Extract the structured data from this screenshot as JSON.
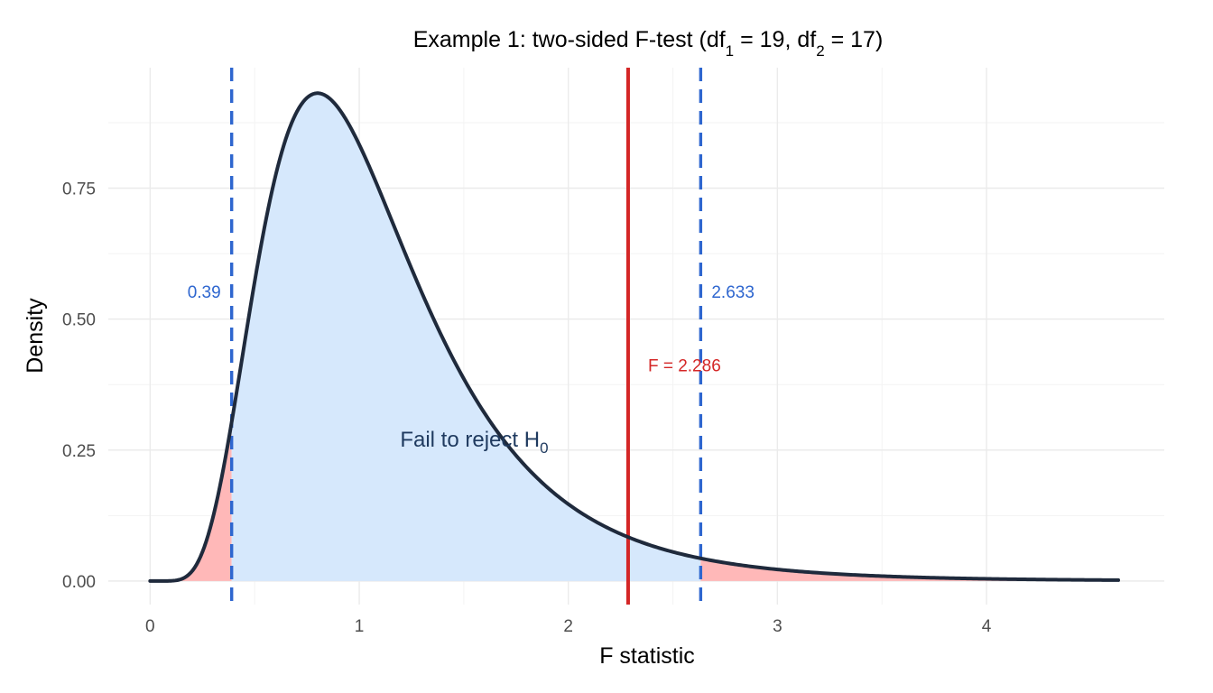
{
  "chart_data": {
    "type": "area",
    "title": {
      "main": "Example 1: two-sided F-test (df",
      "sub1": "1",
      "mid": " = 19, df",
      "sub2": "2",
      "end": " = 17)"
    },
    "xlabel": "F statistic",
    "ylabel": "Density",
    "df1": 19,
    "df2": 17,
    "xlim": [
      -0.2,
      4.85
    ],
    "ylim": [
      -0.045,
      0.98
    ],
    "x_range_curve": [
      0,
      4.63
    ],
    "x_ticks": [
      {
        "value": 0,
        "label": "0"
      },
      {
        "value": 1,
        "label": "1"
      },
      {
        "value": 2,
        "label": "2"
      },
      {
        "value": 3,
        "label": "3"
      },
      {
        "value": 4,
        "label": "4"
      }
    ],
    "y_ticks": [
      {
        "value": 0.0,
        "label": "0.00"
      },
      {
        "value": 0.25,
        "label": "0.25"
      },
      {
        "value": 0.5,
        "label": "0.50"
      },
      {
        "value": 0.75,
        "label": "0.75"
      }
    ],
    "critical_lower": 0.39,
    "critical_upper": 2.633,
    "critical_lower_label": "0.39",
    "critical_upper_label": "2.633",
    "f_observed": 2.286,
    "f_observed_label": "F = 2.286",
    "region_label": {
      "text": "Fail to reject H",
      "sub": "0",
      "x": 1.55,
      "y": 0.27
    },
    "critical_label_y": 0.55,
    "f_label_y": 0.41,
    "colors": {
      "curve": "#1f2a3c",
      "accept_fill": "#d6e8fc",
      "reject_fill": "#ffb8b8",
      "critical_line": "#2e66cf",
      "f_line": "#d42626",
      "critical_text": "#2e66cf",
      "f_text": "#d42626",
      "region_text": "#1f3a5f"
    }
  }
}
